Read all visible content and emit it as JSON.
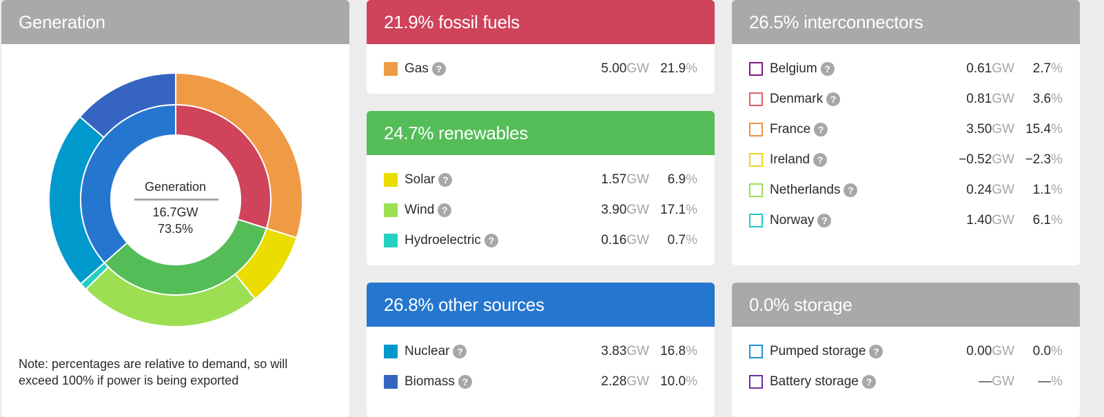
{
  "generation": {
    "title": "Generation",
    "center_title": "Generation",
    "center_gw": "16.7GW",
    "center_pct": "73.5%",
    "note": "Note: percentages are relative to demand, so will exceed 100% if power is being exported",
    "colors": {
      "fossil": "#cf435b",
      "renewables": "#54bd58",
      "other": "#2576cf",
      "gas": "#ef9b45",
      "solar": "#ebdd00",
      "wind": "#9ddf52",
      "hydro": "#24d1c1",
      "nuclear": "#0099cc",
      "biomass": "#3565c0"
    },
    "chart_data": {
      "type": "pie",
      "title": "Generation",
      "inner_ring": [
        {
          "name": "fossil fuels",
          "value": 21.9
        },
        {
          "name": "renewables",
          "value": 24.7
        },
        {
          "name": "other sources",
          "value": 26.8
        }
      ],
      "outer_ring": [
        {
          "name": "Gas",
          "value": 21.9
        },
        {
          "name": "Solar",
          "value": 6.9
        },
        {
          "name": "Wind",
          "value": 17.1
        },
        {
          "name": "Hydroelectric",
          "value": 0.7
        },
        {
          "name": "Nuclear",
          "value": 16.8
        },
        {
          "name": "Biomass",
          "value": 10.0
        }
      ]
    }
  },
  "fossil": {
    "title": "21.9% fossil fuels",
    "rows": [
      {
        "label": "Gas",
        "gw": "5.00",
        "pct": "21.9",
        "color": "#ef9b45"
      }
    ]
  },
  "renewables": {
    "title": "24.7% renewables",
    "rows": [
      {
        "label": "Solar",
        "gw": "1.57",
        "pct": "6.9",
        "color": "#ebdd00"
      },
      {
        "label": "Wind",
        "gw": "3.90",
        "pct": "17.1",
        "color": "#9ddf52"
      },
      {
        "label": "Hydroelectric",
        "gw": "0.16",
        "pct": "0.7",
        "color": "#24d1c1"
      }
    ]
  },
  "other": {
    "title": "26.8% other sources",
    "rows": [
      {
        "label": "Nuclear",
        "gw": "3.83",
        "pct": "16.8",
        "color": "#0099cc"
      },
      {
        "label": "Biomass",
        "gw": "2.28",
        "pct": "10.0",
        "color": "#3565c0"
      }
    ]
  },
  "interconnectors": {
    "title": "26.5% interconnectors",
    "rows": [
      {
        "label": "Belgium",
        "gw": "0.61",
        "pct": "2.7",
        "color": "#7d1a82"
      },
      {
        "label": "Denmark",
        "gw": "0.81",
        "pct": "3.6",
        "color": "#e05d5d"
      },
      {
        "label": "France",
        "gw": "3.50",
        "pct": "15.4",
        "color": "#ef8f3a"
      },
      {
        "label": "Ireland",
        "gw": "−0.52",
        "pct": "−2.3",
        "color": "#e6d81a"
      },
      {
        "label": "Netherlands",
        "gw": "0.24",
        "pct": "1.1",
        "color": "#9ddf52"
      },
      {
        "label": "Norway",
        "gw": "1.40",
        "pct": "6.1",
        "color": "#24c4c4"
      }
    ]
  },
  "storage": {
    "title": "0.0% storage",
    "rows": [
      {
        "label": "Pumped storage",
        "gw": "0.00",
        "pct": "0.0",
        "color": "#1a90d4"
      },
      {
        "label": "Battery storage",
        "gw": "—",
        "pct": "—",
        "color": "#6b2fa0"
      }
    ]
  },
  "units": {
    "gw": "GW",
    "pct": "%"
  },
  "help_glyph": "?",
  "help_icon": "question-mark-icon"
}
